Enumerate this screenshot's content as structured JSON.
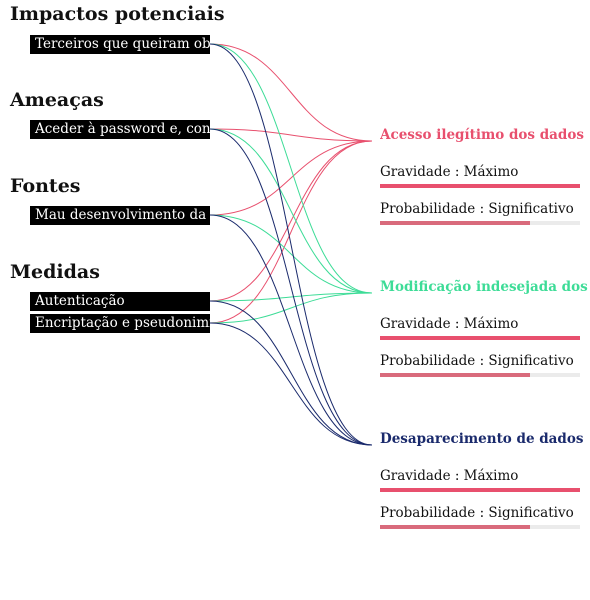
{
  "colors": {
    "risk_access": "#e8506e",
    "risk_modify": "#3ddc97",
    "risk_disappear": "#1a2a6c",
    "severity_bar": "#e8506e",
    "probability_bar": "#d96b7c",
    "bar_track": "#ebebeb"
  },
  "sections": [
    {
      "title": "Impactos potenciais",
      "items": [
        {
          "label": "Terceiros que queiram obter os dados"
        }
      ]
    },
    {
      "title": "Ameaças",
      "items": [
        {
          "label": "Aceder à password e, consequentemente, aos dados"
        }
      ]
    },
    {
      "title": "Fontes",
      "items": [
        {
          "label": "Mau desenvolvimento da aplicação"
        }
      ]
    },
    {
      "title": "Medidas",
      "items": [
        {
          "label": "Autenticação"
        },
        {
          "label": "Encriptação e pseudonimização"
        }
      ]
    }
  ],
  "risks": [
    {
      "title": "Acesso ilegítimo dos dados",
      "color_key": "risk_access",
      "severity": {
        "label": "Gravidade : Máximo",
        "level": 1.0
      },
      "probability": {
        "label": "Probabilidade : Significativo",
        "level": 0.75
      }
    },
    {
      "title": "Modificação indesejada dos dados",
      "color_key": "risk_modify",
      "severity": {
        "label": "Gravidade : Máximo",
        "level": 1.0
      },
      "probability": {
        "label": "Probabilidade : Significativo",
        "level": 0.75
      }
    },
    {
      "title": "Desaparecimento de dados",
      "color_key": "risk_disappear",
      "severity": {
        "label": "Gravidade : Máximo",
        "level": 1.0
      },
      "probability": {
        "label": "Probabilidade : Significativo",
        "level": 0.75
      }
    }
  ]
}
